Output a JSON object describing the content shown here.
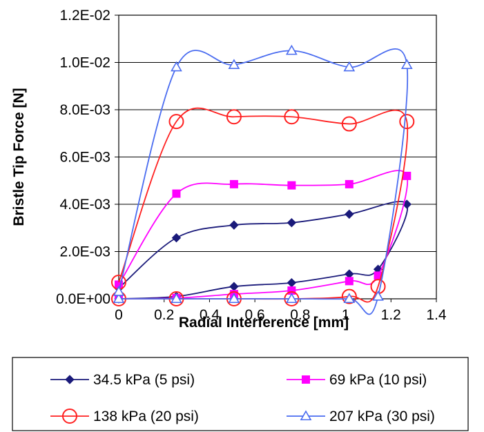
{
  "chart_data": {
    "type": "line",
    "title": "",
    "xlabel": "Radial Interference [mm]",
    "ylabel": "Bristle Tip Force [N]",
    "xlim": [
      0,
      1.4
    ],
    "ylim": [
      0,
      0.012
    ],
    "x_ticks": [
      0,
      0.2,
      0.4,
      0.6,
      0.8,
      1,
      1.2,
      1.4
    ],
    "x_tick_labels": [
      "0",
      "0.2",
      "0.4",
      "0.6",
      "0.8",
      "1",
      "1.2",
      "1.4"
    ],
    "y_ticks": [
      0,
      0.002,
      0.004,
      0.006,
      0.008,
      0.01,
      0.012
    ],
    "y_tick_labels": [
      "0.0E+00",
      "2.0E-03",
      "4.0E-03",
      "6.0E-03",
      "8.0E-03",
      "1.0E-02",
      "1.2E-02"
    ],
    "grid": "horizontal",
    "legend_position": "bottom",
    "series": [
      {
        "name": "34.5 kPa (5 psi)",
        "color": "#1a1a7a",
        "marker": "diamond",
        "x": [
          0,
          0.254,
          0.508,
          0.762,
          1.016,
          1.143,
          1.27,
          1.016,
          0.762,
          0.508,
          0.254,
          0
        ],
        "y": [
          0,
          0.0001,
          0.00052,
          0.00068,
          0.00105,
          0.00125,
          0.004,
          0.00358,
          0.00322,
          0.00312,
          0.00258,
          0.00045
        ]
      },
      {
        "name": "69 kPa (10 psi)",
        "color": "#ff00ff",
        "marker": "square",
        "x": [
          0,
          0.254,
          0.508,
          0.762,
          1.016,
          1.143,
          1.27,
          1.016,
          0.762,
          0.508,
          0.254,
          0
        ],
        "y": [
          0,
          3e-05,
          0.0002,
          0.00035,
          0.00075,
          0.00098,
          0.0052,
          0.00485,
          0.0048,
          0.00485,
          0.00445,
          0.0006
        ]
      },
      {
        "name": "138 kPa (20 psi)",
        "color": "#ff2020",
        "marker": "circle",
        "x": [
          0,
          0.254,
          0.508,
          0.762,
          1.016,
          1.143,
          1.27,
          1.016,
          0.762,
          0.508,
          0.254,
          0
        ],
        "y": [
          0,
          0,
          0,
          0,
          0.0001,
          0.00052,
          0.0075,
          0.0074,
          0.0077,
          0.0077,
          0.0075,
          0.0007
        ]
      },
      {
        "name": "207 kPa (30 psi)",
        "color": "#4a6cf0",
        "marker": "triangle",
        "x": [
          0,
          0.254,
          0.508,
          0.762,
          1.016,
          1.143,
          1.27,
          1.016,
          0.762,
          0.508,
          0.254,
          0
        ],
        "y": [
          0,
          0,
          0,
          0,
          0,
          0.0001,
          0.0099,
          0.0098,
          0.0105,
          0.0099,
          0.0098,
          0.0003
        ]
      }
    ]
  }
}
